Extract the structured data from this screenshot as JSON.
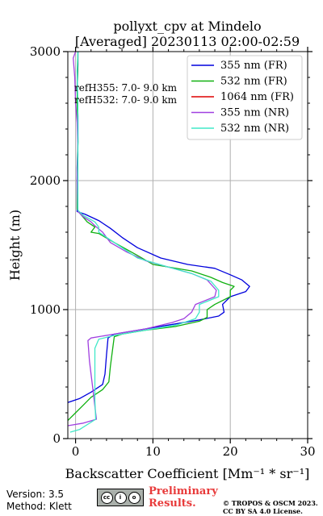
{
  "chart_data": {
    "type": "line",
    "title_line1": "pollyxt_cpv at Mindelo",
    "title_line2": "[Averaged] 20230113 02:00-02:59",
    "xlabel": "Backscatter Coefficient [Mm⁻¹ * sr⁻¹]",
    "ylabel": "Height (m)",
    "xlim": [
      -1,
      30
    ],
    "ylim": [
      0,
      3000
    ],
    "xticks": [
      0,
      10,
      20,
      30
    ],
    "yticks": [
      0,
      1000,
      2000,
      3000
    ],
    "grid": true,
    "legend_position": "top-right",
    "annotations": [
      "refH355:  7.0- 9.0 km",
      "refH532:  7.0- 9.0 km"
    ],
    "series": [
      {
        "name": "355 nm (FR)",
        "color": "#0000dd",
        "points": [
          [
            -1,
            280
          ],
          [
            0.5,
            310
          ],
          [
            2,
            360
          ],
          [
            3.5,
            420
          ],
          [
            3.8,
            500
          ],
          [
            4,
            650
          ],
          [
            4.2,
            780
          ],
          [
            5,
            810
          ],
          [
            8,
            840
          ],
          [
            12,
            880
          ],
          [
            16,
            920
          ],
          [
            18.5,
            950
          ],
          [
            19.2,
            980
          ],
          [
            19,
            1040
          ],
          [
            20,
            1100
          ],
          [
            22,
            1140
          ],
          [
            22.5,
            1180
          ],
          [
            21.5,
            1230
          ],
          [
            20,
            1270
          ],
          [
            18,
            1320
          ],
          [
            14.5,
            1350
          ],
          [
            11,
            1400
          ],
          [
            8,
            1480
          ],
          [
            6,
            1560
          ],
          [
            4.5,
            1630
          ],
          [
            3,
            1690
          ],
          [
            1.2,
            1740
          ],
          [
            0.2,
            1760
          ],
          [
            0.2,
            1900
          ],
          [
            0.2,
            2100
          ],
          [
            0.3,
            2300
          ],
          [
            0.3,
            2500
          ],
          [
            0.2,
            2700
          ],
          [
            0.3,
            2900
          ],
          [
            0.3,
            3000
          ]
        ]
      },
      {
        "name": "532 nm (FR)",
        "color": "#10b010",
        "points": [
          [
            -1,
            140
          ],
          [
            0,
            200
          ],
          [
            1,
            260
          ],
          [
            2,
            320
          ],
          [
            3.5,
            380
          ],
          [
            4.3,
            440
          ],
          [
            4.5,
            560
          ],
          [
            4.8,
            700
          ],
          [
            5,
            790
          ],
          [
            6,
            810
          ],
          [
            9,
            840
          ],
          [
            13,
            870
          ],
          [
            16,
            910
          ],
          [
            17,
            940
          ],
          [
            17,
            1000
          ],
          [
            18,
            1040
          ],
          [
            20,
            1100
          ],
          [
            20,
            1150
          ],
          [
            20.5,
            1180
          ],
          [
            19,
            1210
          ],
          [
            17.5,
            1250
          ],
          [
            15,
            1300
          ],
          [
            10,
            1350
          ],
          [
            8,
            1420
          ],
          [
            5,
            1520
          ],
          [
            3,
            1590
          ],
          [
            2,
            1600
          ],
          [
            2.5,
            1640
          ],
          [
            1.5,
            1680
          ],
          [
            0.5,
            1750
          ],
          [
            0.2,
            1780
          ],
          [
            0.2,
            2000
          ],
          [
            0.3,
            2300
          ],
          [
            0.2,
            2600
          ],
          [
            0.3,
            3000
          ]
        ]
      },
      {
        "name": "1064 nm (FR)",
        "color": "#dd0000",
        "points": []
      },
      {
        "name": "355 nm (NR)",
        "color": "#a040e0",
        "points": [
          [
            -1,
            100
          ],
          [
            1,
            120
          ],
          [
            2.7,
            150
          ],
          [
            2.5,
            250
          ],
          [
            2.2,
            400
          ],
          [
            1.8,
            600
          ],
          [
            1.6,
            760
          ],
          [
            2,
            780
          ],
          [
            5,
            810
          ],
          [
            9,
            850
          ],
          [
            12.5,
            900
          ],
          [
            14,
            930
          ],
          [
            15,
            980
          ],
          [
            15.5,
            1040
          ],
          [
            18,
            1100
          ],
          [
            18.2,
            1150
          ],
          [
            17,
            1230
          ],
          [
            15,
            1280
          ],
          [
            12,
            1330
          ],
          [
            9,
            1380
          ],
          [
            6.5,
            1450
          ],
          [
            4.5,
            1520
          ],
          [
            3.5,
            1600
          ],
          [
            2.5,
            1650
          ],
          [
            2,
            1680
          ],
          [
            1,
            1720
          ],
          [
            0.3,
            1760
          ],
          [
            0.2,
            2000
          ],
          [
            0.3,
            2200
          ],
          [
            0.2,
            2450
          ],
          [
            0,
            2600
          ],
          [
            -0.1,
            2800
          ],
          [
            -0.3,
            2950
          ],
          [
            0,
            3000
          ]
        ]
      },
      {
        "name": "532 nm (NR)",
        "color": "#40e8c8",
        "points": [
          [
            -0.7,
            50
          ],
          [
            0.5,
            70
          ],
          [
            2.6,
            150
          ],
          [
            2.5,
            300
          ],
          [
            2.5,
            500
          ],
          [
            2.5,
            700
          ],
          [
            3,
            770
          ],
          [
            5,
            800
          ],
          [
            9,
            840
          ],
          [
            13,
            880
          ],
          [
            15.5,
            930
          ],
          [
            16,
            980
          ],
          [
            16,
            1040
          ],
          [
            18.5,
            1100
          ],
          [
            18.5,
            1150
          ],
          [
            17.5,
            1220
          ],
          [
            15,
            1280
          ],
          [
            12,
            1330
          ],
          [
            8,
            1400
          ],
          [
            6,
            1480
          ],
          [
            4.5,
            1540
          ],
          [
            3,
            1600
          ],
          [
            3,
            1640
          ],
          [
            2.5,
            1680
          ],
          [
            1,
            1730
          ],
          [
            0.3,
            1770
          ],
          [
            0.3,
            2000
          ],
          [
            0.3,
            2300
          ],
          [
            0.3,
            2600
          ],
          [
            0.2,
            2850
          ],
          [
            0.3,
            3000
          ]
        ]
      }
    ]
  },
  "footer": {
    "version": "Version: 3.5",
    "method": "Method: Klett",
    "prelim1": "Preliminary",
    "prelim2": "Results.",
    "copy1": "© TROPOS & OSCM 2023.",
    "copy2": "CC BY SA 4.0 License.",
    "cc_label": "BY SA"
  }
}
